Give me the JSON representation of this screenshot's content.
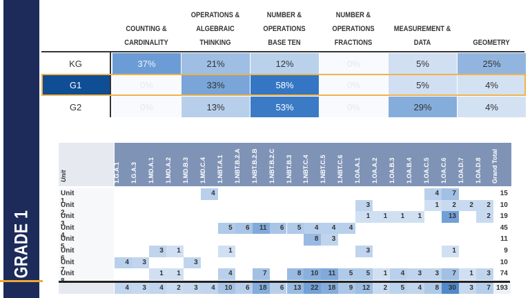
{
  "sidebar": {
    "label": "GRADE 1",
    "bg": "#1c2b5a",
    "accent": "#f0a830"
  },
  "summary": {
    "columns": [
      "COUNTING &\nCARDINALITY",
      "OPERATIONS &\nALGEBRAIC THINKING",
      "NUMBER &\nOPERATIONS\nBASE TEN",
      "NUMBER &\nOPERATIONS\nFRACTIONS",
      "MEASUREMENT &\nDATA",
      "GEOMETRY"
    ],
    "rows": [
      {
        "label": "KG",
        "values": [
          "37%",
          "21%",
          "12%",
          "0%",
          "5%",
          "25%"
        ]
      },
      {
        "label": "G1",
        "values": [
          "0%",
          "33%",
          "58%",
          "0%",
          "5%",
          "4%"
        ],
        "highlighted": true
      },
      {
        "label": "G2",
        "values": [
          "0%",
          "13%",
          "53%",
          "0%",
          "29%",
          "4%"
        ]
      }
    ]
  },
  "heatmap": {
    "unit_header": "Unit",
    "columns": [
      "1.G.A.1",
      "1.G.A.3",
      "1.MD.A.1",
      "1.MD.A.2",
      "1.MD.B.3",
      "1.MD.C.4",
      "1.NBT.A.1",
      "1.NBT.B.2.A",
      "1.NBT.B.2.B",
      "1.NBT.B.2.C",
      "1.NBT.B.3",
      "1.NBT.C.4",
      "1.NBT.C.5",
      "1.NBT.C.6",
      "1.OA.A.1",
      "1.OA.A.2",
      "1.OA.B.3",
      "1.OA.B.4",
      "1.OA.C.5",
      "1.OA.C.6",
      "1.OA.D.7",
      "1.OA.D.8"
    ],
    "total_header": "Grand Total",
    "rows": [
      {
        "label": "Unit 1",
        "values": [
          null,
          null,
          null,
          null,
          null,
          4,
          null,
          null,
          null,
          null,
          null,
          null,
          null,
          null,
          null,
          null,
          null,
          null,
          4,
          7,
          null,
          null
        ],
        "total": 15
      },
      {
        "label": "Unit 2",
        "values": [
          null,
          null,
          null,
          null,
          null,
          null,
          null,
          null,
          null,
          null,
          null,
          null,
          null,
          null,
          3,
          null,
          null,
          null,
          1,
          2,
          2,
          2
        ],
        "total": 10
      },
      {
        "label": "Unit 3",
        "values": [
          null,
          null,
          null,
          null,
          null,
          null,
          null,
          null,
          null,
          null,
          null,
          null,
          null,
          null,
          1,
          1,
          1,
          1,
          null,
          13,
          null,
          2
        ],
        "total": 19
      },
      {
        "label": "Unit 4",
        "values": [
          null,
          null,
          null,
          null,
          null,
          null,
          5,
          6,
          11,
          6,
          5,
          4,
          4,
          4,
          null,
          null,
          null,
          null,
          null,
          null,
          null,
          null
        ],
        "total": 45
      },
      {
        "label": "Unit 5",
        "values": [
          null,
          null,
          null,
          null,
          null,
          null,
          null,
          null,
          null,
          null,
          null,
          8,
          3,
          null,
          null,
          null,
          null,
          null,
          null,
          null,
          null,
          null
        ],
        "total": 11
      },
      {
        "label": "Unit 6",
        "values": [
          null,
          null,
          3,
          1,
          null,
          null,
          1,
          null,
          null,
          null,
          null,
          null,
          null,
          null,
          3,
          null,
          null,
          null,
          null,
          1,
          null,
          null
        ],
        "total": 9
      },
      {
        "label": "Unit 7",
        "values": [
          4,
          3,
          null,
          null,
          3,
          null,
          null,
          null,
          null,
          null,
          null,
          null,
          null,
          null,
          null,
          null,
          null,
          null,
          null,
          null,
          null,
          null
        ],
        "total": 10
      },
      {
        "label": "Unit 8",
        "values": [
          null,
          null,
          1,
          1,
          null,
          null,
          4,
          null,
          7,
          null,
          8,
          10,
          11,
          5,
          5,
          1,
          4,
          3,
          3,
          7,
          1,
          3
        ],
        "total": 74
      }
    ],
    "totals": [
      4,
      3,
      4,
      2,
      3,
      4,
      10,
      6,
      18,
      6,
      13,
      22,
      18,
      9,
      12,
      2,
      5,
      4,
      8,
      30,
      3,
      7
    ],
    "grand_total": 193
  }
}
